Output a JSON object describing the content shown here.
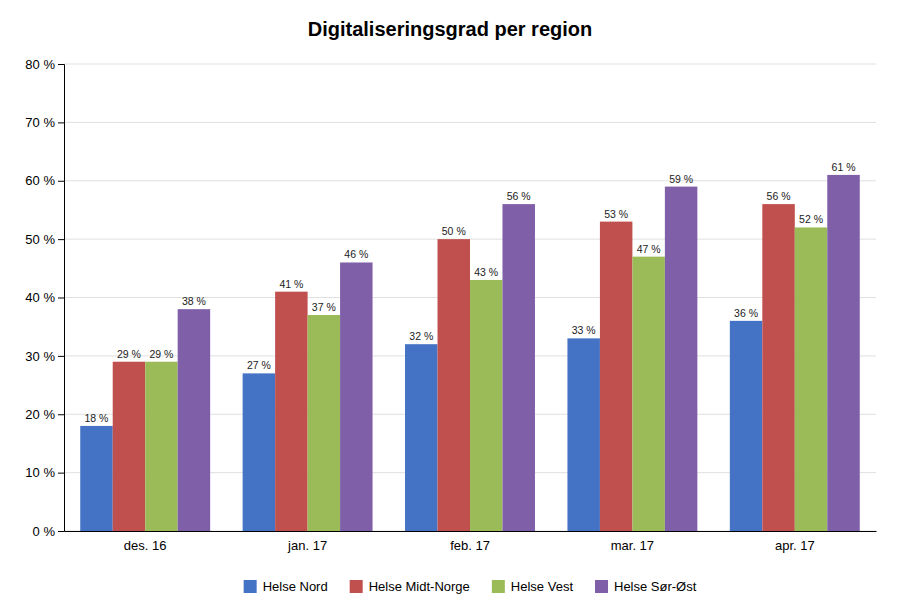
{
  "chart_data": {
    "type": "bar",
    "title": "Digitaliseringsgrad per region",
    "categories": [
      "des. 16",
      "jan. 17",
      "feb. 17",
      "mar. 17",
      "apr. 17"
    ],
    "series": [
      {
        "name": "Helse Nord",
        "color": "#4472C4",
        "values": [
          18,
          27,
          32,
          33,
          36
        ],
        "value_labels": [
          "18 %",
          "27 %",
          "32 %",
          "33 %",
          "36 %"
        ]
      },
      {
        "name": "Helse Midt-Norge",
        "color": "#C0504D",
        "values": [
          29,
          41,
          50,
          53,
          56
        ],
        "value_labels": [
          "29 %",
          "41 %",
          "50 %",
          "53 %",
          "56 %"
        ]
      },
      {
        "name": "Helse Vest",
        "color": "#9BBB59",
        "values": [
          29,
          37,
          43,
          47,
          52
        ],
        "value_labels": [
          "29 %",
          "37 %",
          "43 %",
          "47 %",
          "52 %"
        ]
      },
      {
        "name": "Helse Sør-Øst",
        "color": "#7F5FA8",
        "values": [
          38,
          46,
          56,
          59,
          61
        ],
        "value_labels": [
          "38 %",
          "46 %",
          "56 %",
          "59 %",
          "61 %"
        ]
      }
    ],
    "ylim": [
      0,
      80
    ],
    "yticks": [
      {
        "value": 0,
        "label": "0 %"
      },
      {
        "value": 10,
        "label": "10 %"
      },
      {
        "value": 20,
        "label": "20 %"
      },
      {
        "value": 30,
        "label": "30 %"
      },
      {
        "value": 40,
        "label": "40 %"
      },
      {
        "value": 50,
        "label": "50 %"
      },
      {
        "value": 60,
        "label": "60 %"
      },
      {
        "value": 70,
        "label": "70 %"
      },
      {
        "value": 80,
        "label": "80 %"
      }
    ],
    "grid": true,
    "data_labels": true,
    "legend": "bottom"
  }
}
